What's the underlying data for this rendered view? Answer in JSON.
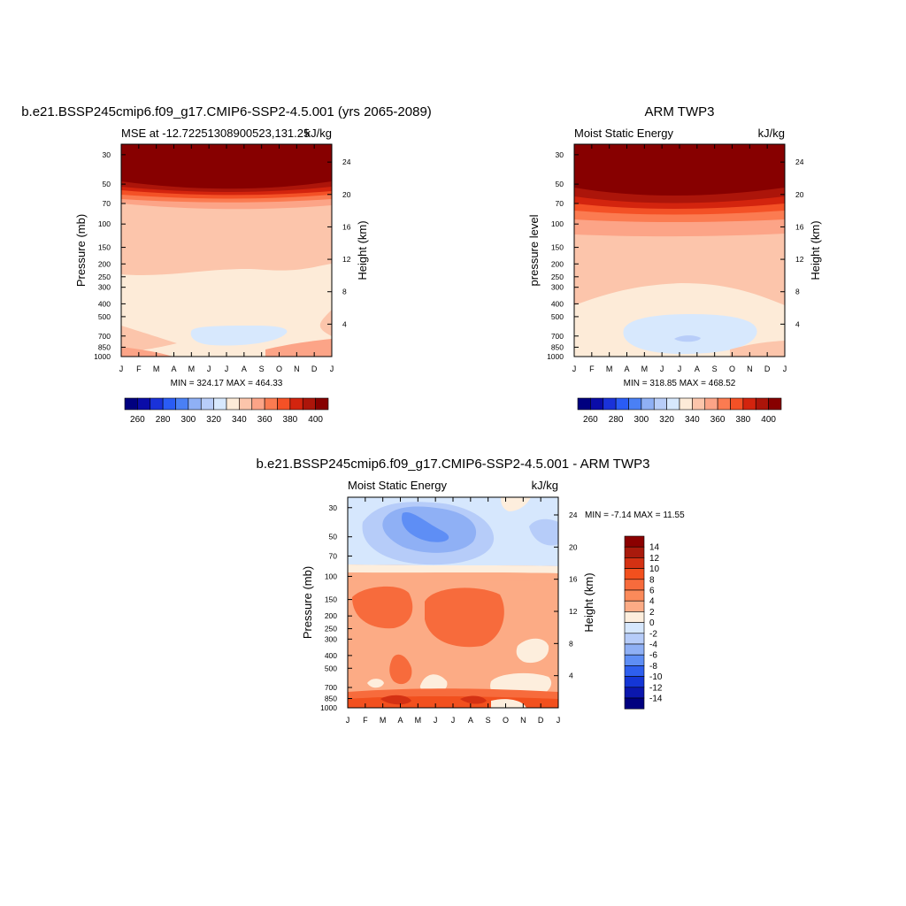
{
  "chart_data": [
    {
      "type": "heatmap",
      "panel": "model",
      "title": "b.e21.BSSP245cmip6.f09_g17.CMIP6-SSP2-4.5.001 (yrs 2065-2089)",
      "subtitle_left": "MSE at -12.72251308900523,131.25",
      "subtitle_right": "kJ/kg",
      "ylabel": "Pressure (mb)",
      "ylabel_right": "Height (km)",
      "x_ticks": [
        "J",
        "F",
        "M",
        "A",
        "M",
        "J",
        "J",
        "A",
        "S",
        "O",
        "N",
        "D",
        "J"
      ],
      "p_ticks": [
        30,
        50,
        70,
        100,
        150,
        200,
        250,
        300,
        400,
        500,
        700,
        850,
        1000
      ],
      "h_ticks": [
        4,
        8,
        12,
        16,
        20,
        24
      ],
      "stats": "MIN = 324.17 MAX = 464.33",
      "min": 324.17,
      "max": 464.33,
      "y_axis": "log-pressure",
      "contour_levels": [
        260,
        270,
        280,
        290,
        300,
        310,
        320,
        330,
        340,
        350,
        360,
        370,
        380,
        390,
        400
      ],
      "colorbar_labels": [
        "260",
        "280",
        "300",
        "320",
        "340",
        "360",
        "380",
        "400"
      ],
      "colorbar_orientation": "horizontal",
      "colors": [
        "#00007f",
        "#0a0ca8",
        "#1a32d9",
        "#2a5cf5",
        "#4a80f5",
        "#8fb0f5",
        "#b8cdf9",
        "#d7e8fd",
        "#fdebd8",
        "#fcc5ab",
        "#fca487",
        "#fb7b51",
        "#f45126",
        "#d3240e",
        "#ac150a",
        "#870000"
      ]
    },
    {
      "type": "heatmap",
      "panel": "obs",
      "title": "ARM TWP3",
      "subtitle_left": "Moist Static Energy",
      "subtitle_right": "kJ/kg",
      "ylabel": "pressure level",
      "ylabel_right": "Height (km)",
      "x_ticks": [
        "J",
        "F",
        "M",
        "A",
        "M",
        "J",
        "J",
        "A",
        "S",
        "O",
        "N",
        "D",
        "J"
      ],
      "p_ticks": [
        30,
        50,
        70,
        100,
        150,
        200,
        250,
        300,
        400,
        500,
        700,
        850,
        1000
      ],
      "h_ticks": [
        4,
        8,
        12,
        16,
        20,
        24
      ],
      "stats": "MIN = 318.85 MAX = 468.52",
      "min": 318.85,
      "max": 468.52,
      "y_axis": "log-pressure",
      "colorbar_labels": [
        "260",
        "280",
        "300",
        "320",
        "340",
        "360",
        "380",
        "400"
      ],
      "colorbar_orientation": "horizontal"
    },
    {
      "type": "heatmap",
      "panel": "difference",
      "title": "b.e21.BSSP245cmip6.f09_g17.CMIP6-SSP2-4.5.001 - ARM TWP3",
      "subtitle_left": "Moist Static Energy",
      "subtitle_right": "kJ/kg",
      "ylabel": "Pressure (mb)",
      "ylabel_right": "Height (km)",
      "x_ticks": [
        "J",
        "F",
        "M",
        "A",
        "M",
        "J",
        "J",
        "A",
        "S",
        "O",
        "N",
        "D",
        "J"
      ],
      "p_ticks": [
        30,
        50,
        70,
        100,
        150,
        200,
        250,
        300,
        400,
        500,
        700,
        850,
        1000
      ],
      "h_ticks": [
        4,
        8,
        12,
        16,
        20,
        24
      ],
      "stats": "MIN =  -7.14 MAX =  11.55",
      "min": -7.14,
      "max": 11.55,
      "y_axis": "log-pressure",
      "contour_levels": [
        -14,
        -12,
        -10,
        -8,
        -6,
        -4,
        -2,
        0,
        2,
        4,
        6,
        8,
        10,
        12,
        14
      ],
      "colorbar_labels": [
        "14",
        "12",
        "10",
        "8",
        "6",
        "4",
        "2",
        "0",
        "-2",
        "-4",
        "-6",
        "-8",
        "-10",
        "-12",
        "-14"
      ],
      "colorbar_orientation": "vertical",
      "colors": [
        "#8b0000",
        "#a91a0c",
        "#d43113",
        "#f2501e",
        "#f76b3c",
        "#fb8a5a",
        "#fcab85",
        "#fdeedd",
        "#d6e7fd",
        "#b6ccf9",
        "#8fb0f5",
        "#5e8ef5",
        "#2e5fee",
        "#1436d6",
        "#0b17ae",
        "#00007f"
      ]
    }
  ]
}
